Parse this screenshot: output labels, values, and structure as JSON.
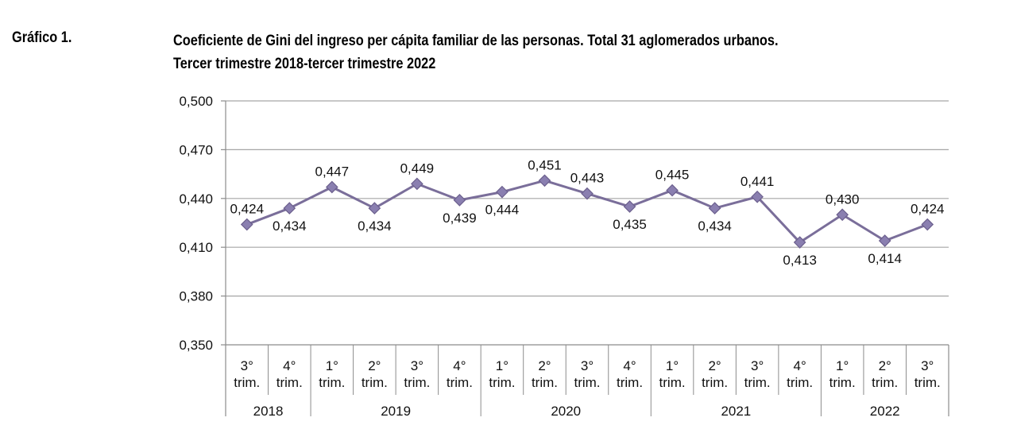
{
  "figure_label": "Gráfico 1.",
  "chart_data": {
    "type": "line",
    "title": "Coeficiente de Gini del ingreso per cápita familiar de las personas. Total 31 aglomerados urbanos.",
    "subtitle": "Tercer trimestre 2018-tercer trimestre 2022",
    "xlabel": "",
    "ylabel": "",
    "ylim": [
      0.35,
      0.5
    ],
    "ytick_step": 0.03,
    "yticks": [
      "0,350",
      "0,380",
      "0,410",
      "0,440",
      "0,470",
      "0,500"
    ],
    "grid": true,
    "categories": [
      {
        "num": "3°",
        "unit": "trim."
      },
      {
        "num": "4°",
        "unit": "trim."
      },
      {
        "num": "1°",
        "unit": "trim."
      },
      {
        "num": "2°",
        "unit": "trim."
      },
      {
        "num": "3°",
        "unit": "trim."
      },
      {
        "num": "4°",
        "unit": "trim."
      },
      {
        "num": "1°",
        "unit": "trim."
      },
      {
        "num": "2°",
        "unit": "trim."
      },
      {
        "num": "3°",
        "unit": "trim."
      },
      {
        "num": "4°",
        "unit": "trim."
      },
      {
        "num": "1°",
        "unit": "trim."
      },
      {
        "num": "2°",
        "unit": "trim."
      },
      {
        "num": "3°",
        "unit": "trim."
      },
      {
        "num": "4°",
        "unit": "trim."
      },
      {
        "num": "1°",
        "unit": "trim."
      },
      {
        "num": "2°",
        "unit": "trim."
      },
      {
        "num": "3°",
        "unit": "trim."
      }
    ],
    "years": [
      {
        "label": "2018",
        "count": 2
      },
      {
        "label": "2019",
        "count": 4
      },
      {
        "label": "2020",
        "count": 4
      },
      {
        "label": "2021",
        "count": 4
      },
      {
        "label": "2022",
        "count": 3
      }
    ],
    "series": [
      {
        "name": "Coeficiente de Gini",
        "values": [
          0.424,
          0.434,
          0.447,
          0.434,
          0.449,
          0.439,
          0.444,
          0.451,
          0.443,
          0.435,
          0.445,
          0.434,
          0.441,
          0.413,
          0.43,
          0.414,
          0.424
        ],
        "value_labels": [
          "0,424",
          "0,434",
          "0,447",
          "0,434",
          "0,449",
          "0,439",
          "0,444",
          "0,451",
          "0,443",
          "0,435",
          "0,445",
          "0,434",
          "0,441",
          "0,413",
          "0,430",
          "0,414",
          "0,424"
        ],
        "label_positions": [
          "above",
          "below",
          "above",
          "below",
          "above",
          "below",
          "below",
          "above",
          "above",
          "below",
          "above",
          "below",
          "above",
          "below",
          "above",
          "below",
          "above"
        ]
      }
    ],
    "colors": {
      "line": "#7a6e9a",
      "marker": "#8a7fb0",
      "marker_edge": "#6b5f8d",
      "grid": "#a6a6a6",
      "axis": "#8c8c8c"
    }
  }
}
